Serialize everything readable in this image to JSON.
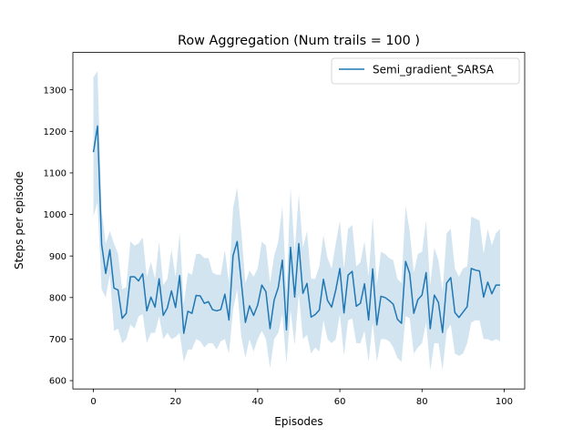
{
  "chart_data": {
    "type": "line",
    "title": "Row Aggregation (Num trails = 100 )",
    "xlabel": "Episodes",
    "ylabel": "Steps per episode",
    "xlim": [
      -5,
      105
    ],
    "ylim": [
      580,
      1390
    ],
    "xticks": [
      0,
      20,
      40,
      60,
      80,
      100
    ],
    "yticks": [
      600,
      700,
      800,
      900,
      1000,
      1100,
      1200,
      1300
    ],
    "grid": false,
    "legend_position": "top-right",
    "series": [
      {
        "name": "Semi_gradient_SARSA",
        "color": "#1f77b4",
        "band_color": "#1f77b4",
        "x": [
          0,
          1,
          2,
          3,
          4,
          5,
          6,
          7,
          8,
          9,
          10,
          11,
          12,
          13,
          14,
          15,
          16,
          17,
          18,
          19,
          20,
          21,
          22,
          23,
          24,
          25,
          26,
          27,
          28,
          29,
          30,
          31,
          32,
          33,
          34,
          35,
          36,
          37,
          38,
          39,
          40,
          41,
          42,
          43,
          44,
          45,
          46,
          47,
          48,
          49,
          50,
          51,
          52,
          53,
          54,
          55,
          56,
          57,
          58,
          59,
          60,
          61,
          62,
          63,
          64,
          65,
          66,
          67,
          68,
          69,
          70,
          71,
          72,
          73,
          74,
          75,
          76,
          77,
          78,
          79,
          80,
          81,
          82,
          83,
          84,
          85,
          86,
          87,
          88,
          89,
          90,
          91,
          92,
          93,
          94,
          95,
          96,
          97,
          98,
          99
        ],
        "values": [
          1150,
          1213,
          928,
          858,
          915,
          823,
          818,
          750,
          762,
          850,
          850,
          840,
          857,
          768,
          801,
          777,
          845,
          757,
          775,
          816,
          776,
          853,
          714,
          767,
          762,
          805,
          804,
          786,
          790,
          771,
          768,
          771,
          808,
          746,
          901,
          935,
          838,
          740,
          780,
          757,
          782,
          830,
          814,
          725,
          794,
          824,
          890,
          722,
          921,
          801,
          930,
          810,
          834,
          753,
          759,
          770,
          844,
          793,
          777,
          818,
          870,
          763,
          854,
          863,
          779,
          786,
          833,
          746,
          869,
          734,
          803,
          800,
          793,
          784,
          748,
          738,
          887,
          858,
          762,
          795,
          806,
          860,
          725,
          806,
          788,
          716,
          835,
          848,
          764,
          752,
          765,
          778,
          870,
          866,
          864,
          801,
          837,
          809,
          830,
          830
        ],
        "lower": [
          995,
          1030,
          820,
          800,
          855,
          720,
          725,
          690,
          700,
          735,
          725,
          755,
          760,
          690,
          715,
          715,
          755,
          700,
          715,
          700,
          705,
          715,
          645,
          675,
          675,
          700,
          695,
          680,
          690,
          690,
          675,
          695,
          700,
          665,
          770,
          820,
          705,
          655,
          700,
          670,
          700,
          720,
          700,
          630,
          700,
          715,
          760,
          640,
          770,
          685,
          810,
          700,
          710,
          665,
          680,
          670,
          745,
          700,
          690,
          700,
          760,
          660,
          745,
          750,
          690,
          690,
          720,
          645,
          740,
          645,
          700,
          700,
          695,
          680,
          655,
          645,
          755,
          750,
          665,
          680,
          690,
          740,
          625,
          690,
          690,
          625,
          720,
          735,
          665,
          660,
          665,
          690,
          740,
          745,
          745,
          700,
          700,
          695,
          700,
          695
        ],
        "upper": [
          1330,
          1345,
          1010,
          930,
          960,
          930,
          905,
          820,
          825,
          935,
          925,
          930,
          945,
          850,
          885,
          845,
          935,
          830,
          845,
          915,
          850,
          955,
          785,
          860,
          855,
          905,
          905,
          895,
          895,
          860,
          855,
          855,
          915,
          835,
          1015,
          1065,
          960,
          835,
          865,
          850,
          870,
          935,
          925,
          835,
          900,
          935,
          1020,
          815,
          1065,
          910,
          1050,
          920,
          960,
          845,
          845,
          875,
          950,
          895,
          870,
          930,
          985,
          870,
          965,
          975,
          875,
          885,
          935,
          850,
          995,
          830,
          910,
          905,
          895,
          890,
          845,
          835,
          1020,
          960,
          860,
          905,
          910,
          985,
          830,
          920,
          890,
          815,
          955,
          965,
          870,
          850,
          870,
          875,
          995,
          990,
          985,
          905,
          965,
          925,
          955,
          965
        ]
      }
    ]
  }
}
